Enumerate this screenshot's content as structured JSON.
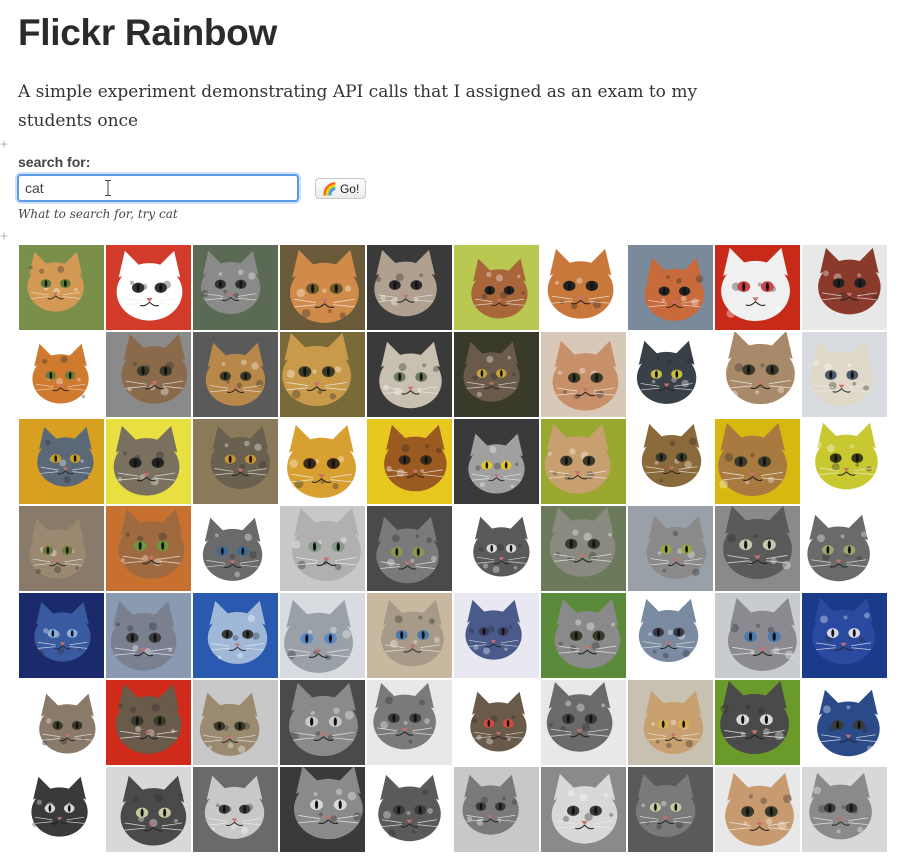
{
  "page": {
    "title": "Flickr Rainbow",
    "description": "A simple experiment demonstrating API calls that I assigned as an exam to my students once"
  },
  "search": {
    "label": "search for:",
    "value": "cat",
    "hint": "What to search for, try cat",
    "button_label": "Go!",
    "button_icon": "rainbow-icon"
  },
  "results": {
    "columns": 10,
    "rows": 7,
    "tiles": [
      {
        "bg": "#7a8f4a",
        "fur": "#d49a55",
        "eye": "#5a7a3a"
      },
      {
        "bg": "#d23a2a",
        "fur": "#ffffff",
        "eye": "#333333"
      },
      {
        "bg": "#5b6a55",
        "fur": "#8a8a88",
        "eye": "#333333"
      },
      {
        "bg": "#6a5a3a",
        "fur": "#d08a4a",
        "eye": "#6a5a2a"
      },
      {
        "bg": "#3a3a3a",
        "fur": "#b0a090",
        "eye": "#2a2a2a"
      },
      {
        "bg": "#b8c850",
        "fur": "#a8663a",
        "eye": "#222222"
      },
      {
        "bg": "#ffffff",
        "fur": "#c8783a",
        "eye": "#222222"
      },
      {
        "bg": "#7a8a9a",
        "fur": "#c86a3a",
        "eye": "#222222"
      },
      {
        "bg": "#c82a1a",
        "fur": "#f0f0f0",
        "eye": "#cc4444"
      },
      {
        "bg": "#e8e8e8",
        "fur": "#8a3a2a",
        "eye": "#222222"
      },
      {
        "bg": "#ffffff",
        "fur": "#d07a30",
        "eye": "#6a7a3a"
      },
      {
        "bg": "#8a8a8a",
        "fur": "#8a6a4a",
        "eye": "#3a3a2a"
      },
      {
        "bg": "#5a5a5a",
        "fur": "#b8884a",
        "eye": "#3a3a2a"
      },
      {
        "bg": "#7a6a3a",
        "fur": "#c89a4a",
        "eye": "#3a3a2a"
      },
      {
        "bg": "#3a3a3a",
        "fur": "#c8c0b0",
        "eye": "#6a7a5a"
      },
      {
        "bg": "#3a3a2a",
        "fur": "#6a5a4a",
        "eye": "#c8a040"
      },
      {
        "bg": "#d8c8b8",
        "fur": "#c89068",
        "eye": "#3a3a2a"
      },
      {
        "bg": "#ffffff",
        "fur": "#3a4048",
        "eye": "#c8c040"
      },
      {
        "bg": "#ffffff",
        "fur": "#a88a6a",
        "eye": "#3a3a2a"
      },
      {
        "bg": "#d8dce0",
        "fur": "#e0d8c8",
        "eye": "#4a5a6a"
      },
      {
        "bg": "#d8a020",
        "fur": "#5a6878",
        "eye": "#c8a020"
      },
      {
        "bg": "#e8e040",
        "fur": "#7a7060",
        "eye": "#222222"
      },
      {
        "bg": "#8a7a5a",
        "fur": "#6a6050",
        "eye": "#c89030"
      },
      {
        "bg": "#ffffff",
        "fur": "#d8a030",
        "eye": "#3a2a1a"
      },
      {
        "bg": "#e8c820",
        "fur": "#9a5a20",
        "eye": "#3a2a1a"
      },
      {
        "bg": "#3a3a3a",
        "fur": "#a0a0a0",
        "eye": "#e8c820"
      },
      {
        "bg": "#9aa830",
        "fur": "#c8a070",
        "eye": "#3a3a2a"
      },
      {
        "bg": "#ffffff",
        "fur": "#8a6a3a",
        "eye": "#3a3a2a"
      },
      {
        "bg": "#d8b810",
        "fur": "#a87a40",
        "eye": "#3a3a2a"
      },
      {
        "bg": "#ffffff",
        "fur": "#c8c830",
        "eye": "#3a3a1a"
      },
      {
        "bg": "#8a7a6a",
        "fur": "#9a8870",
        "eye": "#6a7a3a"
      },
      {
        "bg": "#c87030",
        "fur": "#a06a40",
        "eye": "#6a9a3a"
      },
      {
        "bg": "#ffffff",
        "fur": "#6a6a6a",
        "eye": "#3a6a9a"
      },
      {
        "bg": "#c8c8c8",
        "fur": "#b0b0b0",
        "eye": "#8a9a8a"
      },
      {
        "bg": "#4a4a4a",
        "fur": "#7a7a7a",
        "eye": "#8a9a4a"
      },
      {
        "bg": "#ffffff",
        "fur": "#5a5a5a",
        "eye": "#d8d8d8"
      },
      {
        "bg": "#6a7a5a",
        "fur": "#8a8a80",
        "eye": "#3a3a2a"
      },
      {
        "bg": "#9aa0a8",
        "fur": "#8a8a8a",
        "eye": "#9aa840"
      },
      {
        "bg": "#8a8a8a",
        "fur": "#5a5a5a",
        "eye": "#c8c8b0"
      },
      {
        "bg": "#ffffff",
        "fur": "#6a6a6a",
        "eye": "#9aa870"
      },
      {
        "bg": "#1a2a6a",
        "fur": "#3a5aa0",
        "eye": "#8ab0e0"
      },
      {
        "bg": "#8a9ab0",
        "fur": "#7a8090",
        "eye": "#3a3a3a"
      },
      {
        "bg": "#2a5ab0",
        "fur": "#a0b8d8",
        "eye": "#3a3a3a"
      },
      {
        "bg": "#d8dce0",
        "fur": "#9aa0a8",
        "eye": "#5a8ac8"
      },
      {
        "bg": "#c8b8a0",
        "fur": "#a89a88",
        "eye": "#4a7ab0"
      },
      {
        "bg": "#e8e8f0",
        "fur": "#4a5a8a",
        "eye": "#3a3a5a"
      },
      {
        "bg": "#5a8a3a",
        "fur": "#8a8a8a",
        "eye": "#3a3a2a"
      },
      {
        "bg": "#ffffff",
        "fur": "#7a8aa0",
        "eye": "#3a3a4a"
      },
      {
        "bg": "#c8ccd0",
        "fur": "#8a8a90",
        "eye": "#4a7ab0"
      },
      {
        "bg": "#1a3a8a",
        "fur": "#2a4aa0",
        "eye": "#d8d8e8"
      },
      {
        "bg": "#ffffff",
        "fur": "#8a7a6a",
        "eye": "#3a3a2a"
      },
      {
        "bg": "#d02a1a",
        "fur": "#6a5a4a",
        "eye": "#3a3a2a"
      },
      {
        "bg": "#c8c8c8",
        "fur": "#9a8a70",
        "eye": "#3a3a2a"
      },
      {
        "bg": "#4a4a4a",
        "fur": "#8a8a8a",
        "eye": "#c8c8c8"
      },
      {
        "bg": "#e8e8e8",
        "fur": "#7a7a78",
        "eye": "#3a3a3a"
      },
      {
        "bg": "#ffffff",
        "fur": "#6a5a4a",
        "eye": "#d84a3a"
      },
      {
        "bg": "#e8e8e8",
        "fur": "#6a6a6a",
        "eye": "#3a3a3a"
      },
      {
        "bg": "#c8c0b0",
        "fur": "#c8a070",
        "eye": "#d8b050"
      },
      {
        "bg": "#6a9a2a",
        "fur": "#4a4a4a",
        "eye": "#d8d8d8"
      },
      {
        "bg": "#ffffff",
        "fur": "#2a4a8a",
        "eye": "#3a3a3a"
      },
      {
        "bg": "#ffffff",
        "fur": "#3a3a3a",
        "eye": "#d8d8d8"
      },
      {
        "bg": "#d8d8d8",
        "fur": "#4a4a4a",
        "eye": "#c8c8a0"
      },
      {
        "bg": "#6a6a6a",
        "fur": "#c8c8c8",
        "eye": "#3a3a3a"
      },
      {
        "bg": "#3a3a3a",
        "fur": "#8a8a8a",
        "eye": "#d8d8d8"
      },
      {
        "bg": "#ffffff",
        "fur": "#5a5a5a",
        "eye": "#3a3a3a"
      },
      {
        "bg": "#c8c8c8",
        "fur": "#7a7a7a",
        "eye": "#3a3a3a"
      },
      {
        "bg": "#8a8a8a",
        "fur": "#d8d8d8",
        "eye": "#3a3a3a"
      },
      {
        "bg": "#5a5a5a",
        "fur": "#7a7a7a",
        "eye": "#c8c8a0"
      },
      {
        "bg": "#e8e8e8",
        "fur": "#c89a70",
        "eye": "#3a3a2a"
      },
      {
        "bg": "#d8d8d8",
        "fur": "#8a8a8a",
        "eye": "#3a3a3a"
      }
    ]
  }
}
